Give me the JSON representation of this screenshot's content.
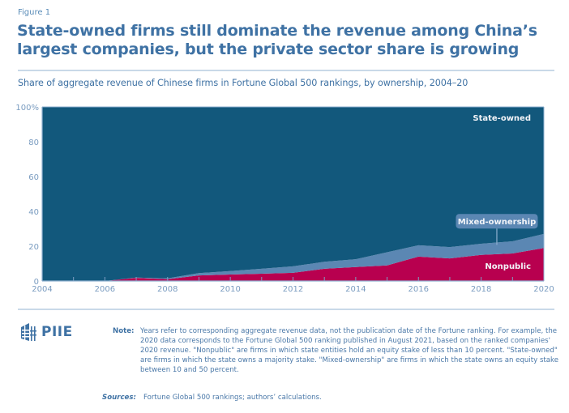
{
  "figure_label": "Figure 1",
  "title": "State-owned firms still dominate the revenue among China’s largest companies, but the private sector share is growing",
  "subtitle": "Share of aggregate revenue of Chinese firms in Fortune Global 500 rankings, by ownership, 2004–20",
  "logo": {
    "icon": "piie-building-icon",
    "text": "PIIE"
  },
  "note": {
    "label": "Note:",
    "text": "Years refer to corresponding aggregate revenue data, not the publication date of the Fortune ranking. For example, the 2020 data corresponds to the Fortune Global 500 ranking published in August 2021, based on the ranked companies' 2020 revenue. \"Nonpublic\" are firms in which state entities hold an equity stake of less than 10 percent. \"State-owned\" are firms in which the state owns a majority stake. \"Mixed-ownership\" are firms in which the state owns an equity stake between 10 and 50 percent."
  },
  "sources": {
    "label": "Sources:",
    "text": "Fortune Global 500 rankings; authors’ calculations."
  },
  "chart_data": {
    "type": "area",
    "stacked": true,
    "title": "Share of aggregate revenue of Chinese firms in Fortune Global 500 rankings, by ownership, 2004–20",
    "xlabel": "",
    "ylabel": "",
    "x": [
      2004,
      2005,
      2006,
      2007,
      2008,
      2009,
      2010,
      2011,
      2012,
      2013,
      2014,
      2015,
      2016,
      2017,
      2018,
      2019,
      2020
    ],
    "xlim": [
      2004,
      2020
    ],
    "ylim": [
      0,
      100
    ],
    "x_ticks": [
      "2004",
      "2006",
      "2008",
      "2010",
      "2012",
      "2014",
      "2016",
      "2018",
      "2020"
    ],
    "x_tick_values": [
      2004,
      2006,
      2008,
      2010,
      2012,
      2014,
      2016,
      2018,
      2020
    ],
    "y_ticks": [
      "0",
      "20",
      "40",
      "60",
      "80",
      "100%"
    ],
    "y_tick_values": [
      0,
      20,
      40,
      60,
      80,
      100
    ],
    "grid": false,
    "legend": "inline labels",
    "series": [
      {
        "name": "Nonpublic",
        "color": "#b8004f",
        "values": [
          0,
          0,
          0,
          1.8,
          1.0,
          3.2,
          3.7,
          4.2,
          4.7,
          7.0,
          8.0,
          9.0,
          14.0,
          13.0,
          15.0,
          15.8,
          19.0
        ]
      },
      {
        "name": "Mixed-ownership",
        "color": "#5b87b3",
        "values": [
          0,
          0,
          0,
          0.2,
          0.5,
          1.3,
          2.0,
          2.8,
          3.7,
          4.0,
          4.5,
          7.5,
          6.5,
          6.5,
          6.4,
          7.0,
          8.0
        ]
      },
      {
        "name": "State-owned",
        "color": "#12587c",
        "values": [
          100,
          100,
          100,
          98.0,
          98.5,
          95.5,
          94.3,
          93.0,
          91.6,
          89.0,
          87.5,
          83.5,
          79.5,
          80.5,
          78.6,
          77.2,
          73.0
        ]
      }
    ],
    "annotations": [
      {
        "text": "State-owned",
        "series": "State-owned"
      },
      {
        "text": "Mixed-ownership",
        "series": "Mixed-ownership",
        "style": "boxed label with leader line"
      },
      {
        "text": "Nonpublic",
        "series": "Nonpublic"
      }
    ]
  }
}
